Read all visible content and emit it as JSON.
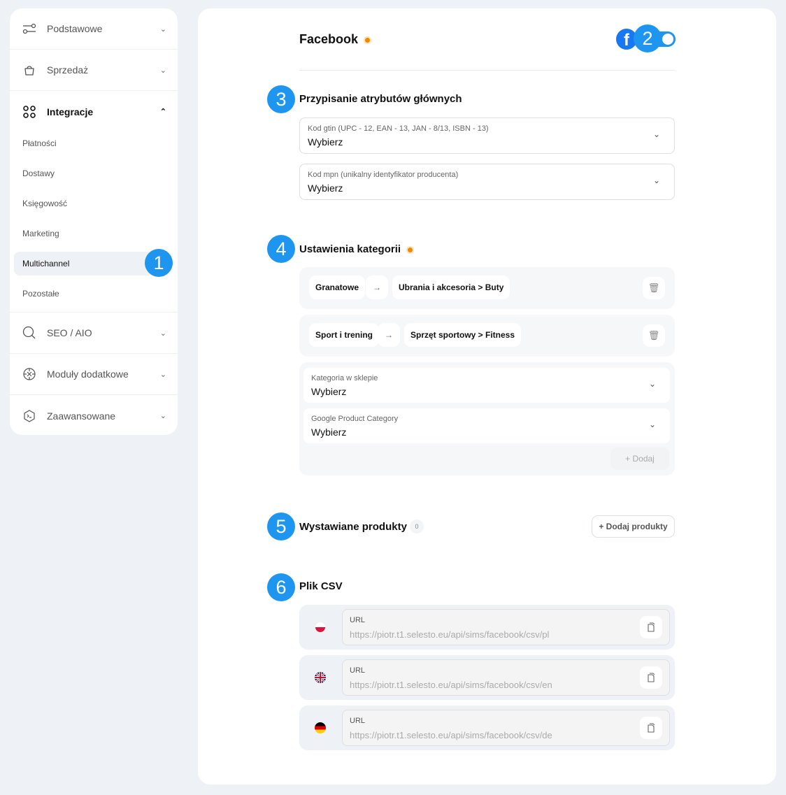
{
  "sidebar": {
    "groups": [
      {
        "label": "Podstawowe",
        "icon": "sliders-icon"
      },
      {
        "label": "Sprzedaż",
        "icon": "shopping-bag-icon"
      },
      {
        "label": "Integracje",
        "icon": "grid-icon"
      },
      {
        "label": "SEO / AIO",
        "icon": "search-icon"
      },
      {
        "label": "Moduły dodatkowe",
        "icon": "puzzle-icon"
      },
      {
        "label": "Zaawansowane",
        "icon": "terminal-icon"
      }
    ],
    "sub_items": [
      "Płatności",
      "Dostawy",
      "Księgowość",
      "Marketing",
      "Multichannel",
      "Pozostałe"
    ],
    "active": "Multichannel"
  },
  "badges": [
    "1",
    "2",
    "3",
    "4",
    "5",
    "6"
  ],
  "header": {
    "title": "Facebook",
    "toggle_on": true
  },
  "attributes": {
    "title": "Przypisanie atrybutów głównych",
    "fields": [
      {
        "label": "Kod gtin (UPC - 12, EAN - 13, JAN - 8/13, ISBN - 13)",
        "value": "Wybierz"
      },
      {
        "label": "Kod mpn (unikalny identyfikator producenta)",
        "value": "Wybierz"
      }
    ]
  },
  "categories": {
    "title": "Ustawienia kategorii",
    "mappings": [
      {
        "from": "Granatowe",
        "arrow": "→",
        "to": "Ubrania i akcesoria > Buty"
      },
      {
        "from": "Sport i trening",
        "arrow": "→",
        "to": "Sprzęt sportowy > Fitness"
      }
    ],
    "new": {
      "shop_label": "Kategoria w sklepie",
      "shop_value": "Wybierz",
      "google_label": "Google Product Category",
      "google_value": "Wybierz",
      "add_label": "+ Dodaj"
    }
  },
  "products": {
    "title": "Wystawiane produkty",
    "count": "0",
    "add_label": "+ Dodaj produkty"
  },
  "csv": {
    "title": "Plik CSV",
    "items": [
      {
        "lang": "pl",
        "label": "URL",
        "value": "https://piotr.t1.selesto.eu/api/sims/facebook/csv/pl"
      },
      {
        "lang": "en",
        "label": "URL",
        "value": "https://piotr.t1.selesto.eu/api/sims/facebook/csv/en"
      },
      {
        "lang": "de",
        "label": "URL",
        "value": "https://piotr.t1.selesto.eu/api/sims/facebook/csv/de"
      }
    ]
  },
  "colors": {
    "accent": "#1e96f0",
    "facebook": "#1877f2",
    "status_dot": "#f08a00"
  }
}
